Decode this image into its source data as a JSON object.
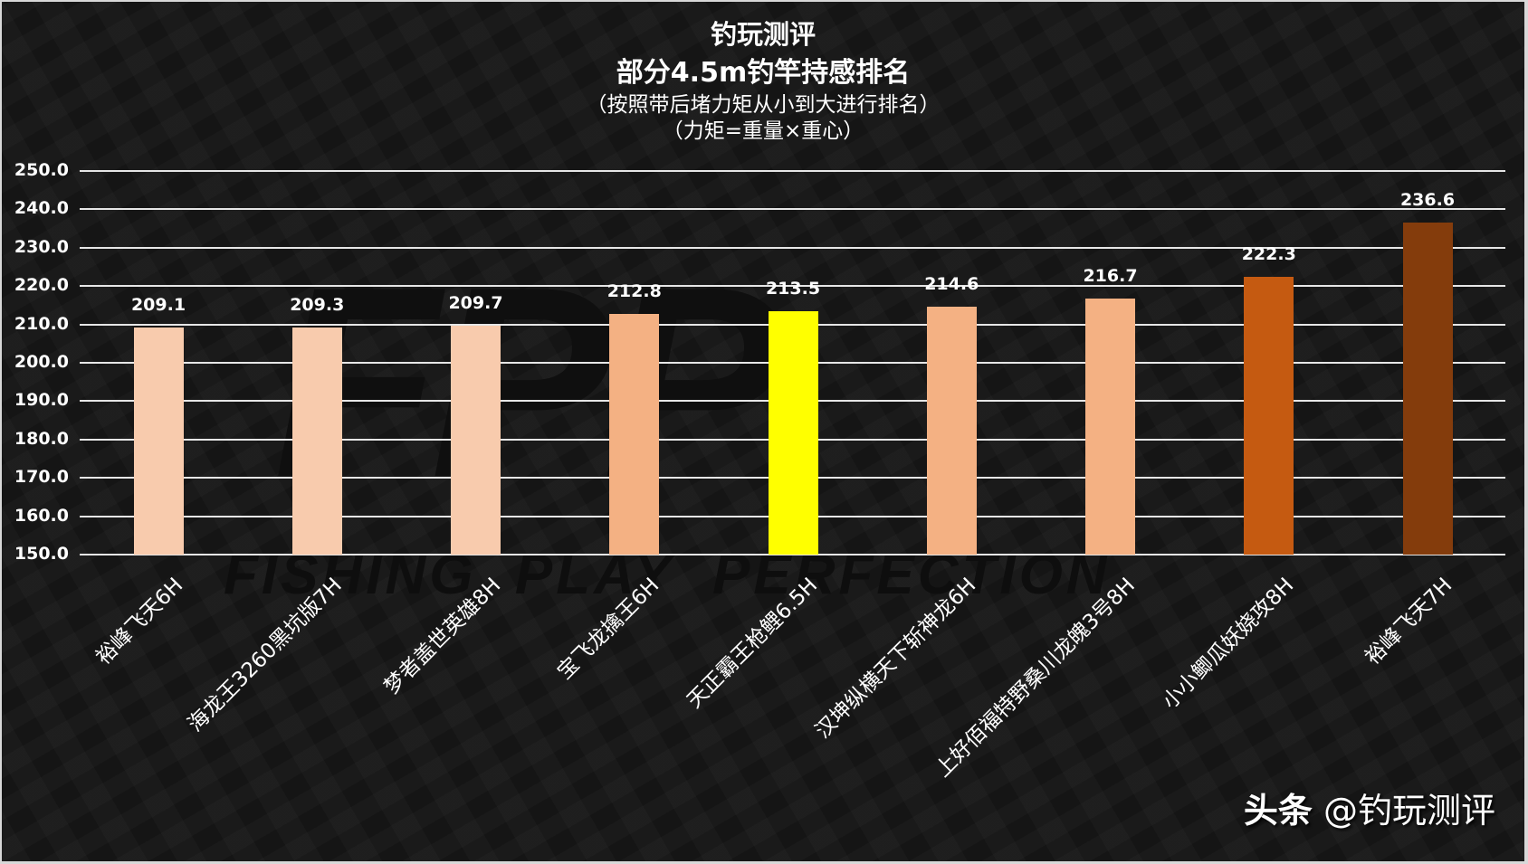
{
  "header": {
    "title_line1": "钓玩测评",
    "title_line2": "部分4.5m钓竿持感排名",
    "subtitle_line1": "（按照带后堵力矩从小到大进行排名）",
    "subtitle_line2": "（力矩=重量×重心）"
  },
  "background": {
    "logo": "FPP",
    "tagline": "FISHING  PLAY  PERFECTION"
  },
  "footer": {
    "platform": "头条",
    "account": "@钓玩测评"
  },
  "chart_data": {
    "type": "bar",
    "title": "钓玩测评 部分4.5m钓竿持感排名",
    "subtitle": "（按照带后堵力矩从小到大进行排名）（力矩=重量×重心）",
    "xlabel": "",
    "ylabel": "",
    "ylim": [
      150,
      250
    ],
    "yticks": [
      "150.0",
      "160.0",
      "170.0",
      "180.0",
      "190.0",
      "200.0",
      "210.0",
      "220.0",
      "230.0",
      "240.0",
      "250.0"
    ],
    "grid": true,
    "legend": null,
    "categories": [
      "裕峰飞天6H",
      "海龙王3260黑坑版7H",
      "梦者盖世英雄8H",
      "宝飞龙擒王6H",
      "天正霸王枪鲤6.5H",
      "汉坤纵横天下斩神龙6H",
      "上好佰福特野桑川龙魄3号8H",
      "小小鲫瓜妖娆攻8H",
      "裕峰飞天7H"
    ],
    "values": [
      209.1,
      209.3,
      209.7,
      212.8,
      213.5,
      214.6,
      216.7,
      222.3,
      236.6
    ],
    "value_labels": [
      "209.1",
      "209.3",
      "209.7",
      "212.8",
      "213.5",
      "214.6",
      "216.7",
      "222.3",
      "236.6"
    ],
    "colors": [
      "#F8CBAD",
      "#F8CBAD",
      "#F8CBAD",
      "#F4B183",
      "#FFFF00",
      "#F4B183",
      "#F4B183",
      "#C55A11",
      "#843C0C"
    ]
  }
}
